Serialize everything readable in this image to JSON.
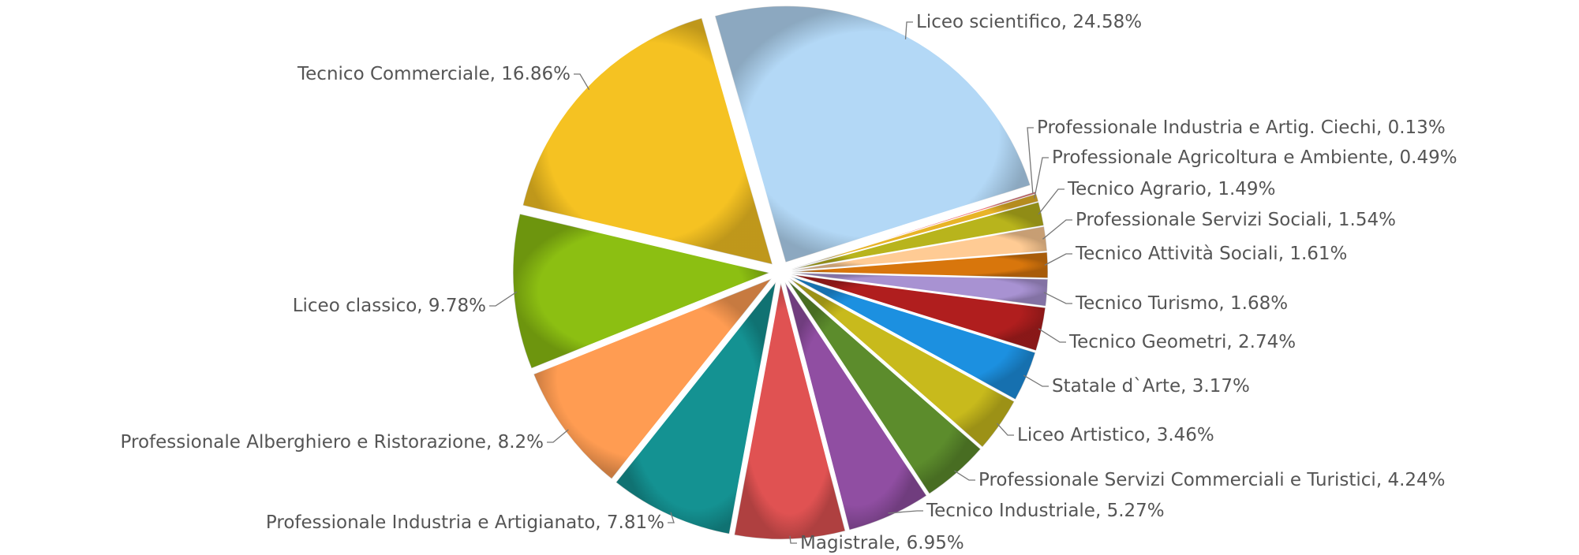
{
  "chart_data": {
    "type": "pie",
    "categories": [
      "Liceo scientifico",
      "Professionale Industria e Artig. Ciechi",
      "Professionale Agricoltura e Ambiente",
      "Tecnico Agrario",
      "Professionale Servizi Sociali",
      "Tecnico Attività Sociali",
      "Tecnico Turismo",
      "Tecnico Geometri",
      "Statale d`Arte",
      "Liceo Artistico",
      "Professionale Servizi Commerciali e Turistici",
      "Tecnico Industriale",
      "Magistrale",
      "Professionale Industria e Artigianato",
      "Professionale Alberghiero e Ristorazione",
      "Liceo classico",
      "Tecnico Commerciale"
    ],
    "values": [
      24.58,
      0.13,
      0.49,
      1.49,
      1.54,
      1.61,
      1.68,
      2.74,
      3.17,
      3.46,
      4.24,
      5.27,
      6.95,
      7.81,
      8.2,
      9.78,
      16.86
    ],
    "value_labels": [
      "24.58%",
      "0.13%",
      "0.49%",
      "1.49%",
      "1.54%",
      "1.61%",
      "1.68%",
      "2.74%",
      "3.17%",
      "3.46%",
      "4.24%",
      "5.27%",
      "6.95%",
      "7.81%",
      "8.2%",
      "9.78%",
      "16.86%"
    ],
    "label_separator": ", ",
    "colors": [
      "#b3d8f6",
      "#f07878",
      "#e8b428",
      "#b8b41c",
      "#ffcb94",
      "#d8760c",
      "#a892d2",
      "#b01e1e",
      "#1c90e0",
      "#c8ba1c",
      "#5c8c2c",
      "#904ea2",
      "#e05252",
      "#149292",
      "#ff9c52",
      "#8cbf12",
      "#f5c222"
    ]
  }
}
